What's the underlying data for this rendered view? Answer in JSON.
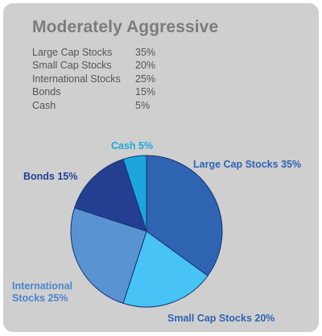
{
  "title": "Moderately Aggressive",
  "allocation_table": [
    {
      "name": "Large Cap Stocks",
      "value": "35%"
    },
    {
      "name": "Small Cap Stocks",
      "value": "20%"
    },
    {
      "name": "International Stocks",
      "value": "25%"
    },
    {
      "name": "Bonds",
      "value": "15%"
    },
    {
      "name": "Cash",
      "value": "5%"
    }
  ],
  "colors": {
    "card_background": "#cfcfcf",
    "title_text": "#7c7c7c",
    "table_text": "#555555"
  },
  "chart_data": {
    "type": "pie",
    "title": "",
    "start": "12 o'clock, clockwise",
    "slices": [
      {
        "label": "Large Cap Stocks 35%",
        "value": 35,
        "color": "#2f64b3",
        "label_color": "#2f64b3"
      },
      {
        "label": "Small Cap Stocks 20%",
        "value": 20,
        "color": "#47c3f5",
        "label_color": "#2f64b3"
      },
      {
        "label": "International Stocks 25%",
        "value": 25,
        "color": "#5a93d2",
        "label_color": "#4a86cc"
      },
      {
        "label": "Bonds 15%",
        "value": 15,
        "color": "#243f92",
        "label_color": "#243f92"
      },
      {
        "label": "Cash 5%",
        "value": 5,
        "color": "#1da6dc",
        "label_color": "#1da6dc"
      }
    ]
  }
}
